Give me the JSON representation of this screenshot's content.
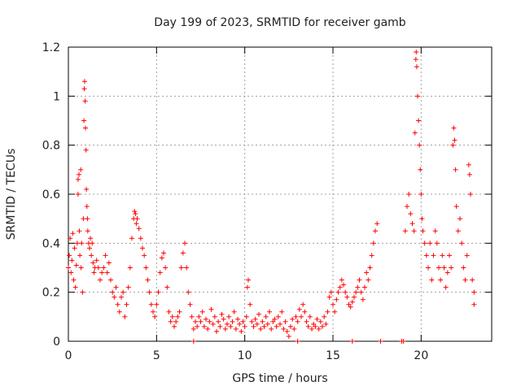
{
  "chart_data": {
    "type": "scatter",
    "title": "Day 199 of 2023, SRMTID for receiver gamb",
    "xlabel": "GPS time / hours",
    "ylabel": "SRMTID / TECUs",
    "xlim": [
      0,
      24
    ],
    "ylim": [
      0,
      1.2
    ],
    "x_ticks": [
      0,
      5,
      10,
      15,
      20
    ],
    "y_ticks": [
      0,
      0.2,
      0.4,
      0.6,
      0.8,
      1,
      1.2
    ],
    "x_tick_labels": [
      "0",
      "5",
      "10",
      "15",
      "20"
    ],
    "y_tick_labels": [
      "0",
      "0.2",
      "0.4",
      "0.6",
      "0.8",
      "1",
      "1.2"
    ],
    "grid": true,
    "marker": "+",
    "marker_color": "#ff0000",
    "series": [
      {
        "name": "SRMTID",
        "points": [
          [
            0.0,
            0.3
          ],
          [
            0.05,
            0.35
          ],
          [
            0.1,
            0.42
          ],
          [
            0.15,
            0.28
          ],
          [
            0.2,
            0.33
          ],
          [
            0.25,
            0.44
          ],
          [
            0.3,
            0.25
          ],
          [
            0.35,
            0.38
          ],
          [
            0.4,
            0.22
          ],
          [
            0.45,
            0.31
          ],
          [
            0.5,
            0.4
          ],
          [
            0.55,
            0.6
          ],
          [
            0.55,
            0.66
          ],
          [
            0.6,
            0.68
          ],
          [
            0.62,
            0.45
          ],
          [
            0.65,
            0.35
          ],
          [
            0.7,
            0.7
          ],
          [
            0.72,
            0.3
          ],
          [
            0.75,
            0.4
          ],
          [
            0.8,
            0.2
          ],
          [
            0.85,
            0.5
          ],
          [
            0.88,
            0.9
          ],
          [
            0.9,
            1.03
          ],
          [
            0.92,
            1.06
          ],
          [
            0.95,
            0.98
          ],
          [
            0.97,
            0.87
          ],
          [
            1.0,
            0.78
          ],
          [
            1.02,
            0.62
          ],
          [
            1.05,
            0.55
          ],
          [
            1.08,
            0.5
          ],
          [
            1.1,
            0.45
          ],
          [
            1.15,
            0.4
          ],
          [
            1.2,
            0.38
          ],
          [
            1.25,
            0.42
          ],
          [
            1.3,
            0.35
          ],
          [
            1.35,
            0.4
          ],
          [
            1.4,
            0.32
          ],
          [
            1.45,
            0.28
          ],
          [
            1.5,
            0.3
          ],
          [
            1.6,
            0.33
          ],
          [
            1.7,
            0.3
          ],
          [
            1.8,
            0.25
          ],
          [
            1.9,
            0.28
          ],
          [
            2.0,
            0.3
          ],
          [
            2.1,
            0.35
          ],
          [
            2.2,
            0.28
          ],
          [
            2.3,
            0.32
          ],
          [
            2.4,
            0.25
          ],
          [
            2.5,
            0.2
          ],
          [
            2.6,
            0.18
          ],
          [
            2.7,
            0.22
          ],
          [
            2.8,
            0.15
          ],
          [
            2.9,
            0.12
          ],
          [
            3.0,
            0.18
          ],
          [
            3.1,
            0.2
          ],
          [
            3.2,
            0.1
          ],
          [
            3.3,
            0.15
          ],
          [
            3.4,
            0.22
          ],
          [
            3.5,
            0.3
          ],
          [
            3.6,
            0.42
          ],
          [
            3.7,
            0.5
          ],
          [
            3.75,
            0.53
          ],
          [
            3.8,
            0.52
          ],
          [
            3.85,
            0.48
          ],
          [
            3.9,
            0.5
          ],
          [
            4.0,
            0.46
          ],
          [
            4.1,
            0.42
          ],
          [
            4.2,
            0.38
          ],
          [
            4.3,
            0.35
          ],
          [
            4.4,
            0.3
          ],
          [
            4.5,
            0.25
          ],
          [
            4.6,
            0.2
          ],
          [
            4.7,
            0.15
          ],
          [
            4.8,
            0.12
          ],
          [
            4.9,
            0.1
          ],
          [
            5.0,
            0.15
          ],
          [
            5.1,
            0.2
          ],
          [
            5.2,
            0.28
          ],
          [
            5.3,
            0.34
          ],
          [
            5.4,
            0.36
          ],
          [
            5.5,
            0.3
          ],
          [
            5.6,
            0.22
          ],
          [
            5.7,
            0.12
          ],
          [
            5.8,
            0.08
          ],
          [
            5.9,
            0.1
          ],
          [
            6.0,
            0.06
          ],
          [
            6.1,
            0.08
          ],
          [
            6.2,
            0.1
          ],
          [
            6.3,
            0.12
          ],
          [
            6.4,
            0.3
          ],
          [
            6.5,
            0.36
          ],
          [
            6.6,
            0.4
          ],
          [
            6.7,
            0.3
          ],
          [
            6.8,
            0.2
          ],
          [
            6.9,
            0.15
          ],
          [
            7.0,
            0.1
          ],
          [
            7.1,
            0.05
          ],
          [
            7.2,
            0.08
          ],
          [
            7.3,
            0.06
          ],
          [
            7.4,
            0.1
          ],
          [
            7.5,
            0.08
          ],
          [
            7.6,
            0.12
          ],
          [
            7.7,
            0.06
          ],
          [
            7.8,
            0.09
          ],
          [
            7.9,
            0.05
          ],
          [
            8.0,
            0.08
          ],
          [
            8.1,
            0.13
          ],
          [
            8.2,
            0.07
          ],
          [
            8.3,
            0.1
          ],
          [
            8.4,
            0.04
          ],
          [
            8.5,
            0.08
          ],
          [
            8.6,
            0.06
          ],
          [
            8.7,
            0.11
          ],
          [
            8.8,
            0.09
          ],
          [
            8.9,
            0.05
          ],
          [
            9.0,
            0.07
          ],
          [
            9.1,
            0.1
          ],
          [
            9.2,
            0.06
          ],
          [
            9.3,
            0.08
          ],
          [
            9.4,
            0.12
          ],
          [
            9.5,
            0.05
          ],
          [
            9.6,
            0.09
          ],
          [
            9.7,
            0.07
          ],
          [
            9.8,
            0.04
          ],
          [
            9.9,
            0.08
          ],
          [
            10.0,
            0.06
          ],
          [
            10.1,
            0.1
          ],
          [
            10.15,
            0.22
          ],
          [
            10.2,
            0.25
          ],
          [
            10.3,
            0.15
          ],
          [
            10.4,
            0.08
          ],
          [
            10.5,
            0.06
          ],
          [
            10.6,
            0.09
          ],
          [
            10.7,
            0.07
          ],
          [
            10.8,
            0.11
          ],
          [
            10.9,
            0.05
          ],
          [
            11.0,
            0.08
          ],
          [
            11.1,
            0.06
          ],
          [
            11.2,
            0.1
          ],
          [
            11.3,
            0.07
          ],
          [
            11.4,
            0.12
          ],
          [
            11.5,
            0.05
          ],
          [
            11.6,
            0.08
          ],
          [
            11.7,
            0.09
          ],
          [
            11.8,
            0.06
          ],
          [
            11.9,
            0.1
          ],
          [
            12.0,
            0.07
          ],
          [
            12.1,
            0.12
          ],
          [
            12.2,
            0.05
          ],
          [
            12.3,
            0.08
          ],
          [
            12.4,
            0.04
          ],
          [
            12.5,
            0.02
          ],
          [
            12.6,
            0.06
          ],
          [
            12.7,
            0.09
          ],
          [
            12.8,
            0.05
          ],
          [
            12.9,
            0.1
          ],
          [
            13.0,
            0.08
          ],
          [
            13.1,
            0.13
          ],
          [
            13.2,
            0.1
          ],
          [
            13.3,
            0.15
          ],
          [
            13.4,
            0.12
          ],
          [
            13.5,
            0.08
          ],
          [
            13.6,
            0.06
          ],
          [
            13.7,
            0.1
          ],
          [
            13.8,
            0.05
          ],
          [
            13.9,
            0.07
          ],
          [
            14.0,
            0.06
          ],
          [
            14.1,
            0.09
          ],
          [
            14.2,
            0.05
          ],
          [
            14.3,
            0.08
          ],
          [
            14.4,
            0.06
          ],
          [
            14.5,
            0.1
          ],
          [
            14.6,
            0.07
          ],
          [
            14.7,
            0.12
          ],
          [
            14.8,
            0.18
          ],
          [
            14.9,
            0.2
          ],
          [
            15.0,
            0.15
          ],
          [
            15.1,
            0.12
          ],
          [
            15.2,
            0.17
          ],
          [
            15.3,
            0.2
          ],
          [
            15.4,
            0.22
          ],
          [
            15.5,
            0.25
          ],
          [
            15.6,
            0.23
          ],
          [
            15.7,
            0.2
          ],
          [
            15.8,
            0.18
          ],
          [
            15.9,
            0.15
          ],
          [
            16.0,
            0.14
          ],
          [
            16.1,
            0.16
          ],
          [
            16.2,
            0.18
          ],
          [
            16.3,
            0.2
          ],
          [
            16.4,
            0.22
          ],
          [
            16.5,
            0.25
          ],
          [
            16.6,
            0.2
          ],
          [
            16.7,
            0.17
          ],
          [
            16.8,
            0.22
          ],
          [
            16.9,
            0.28
          ],
          [
            17.0,
            0.25
          ],
          [
            17.1,
            0.3
          ],
          [
            17.2,
            0.35
          ],
          [
            17.3,
            0.4
          ],
          [
            17.4,
            0.45
          ],
          [
            17.5,
            0.48
          ],
          [
            19.1,
            0.45
          ],
          [
            19.2,
            0.55
          ],
          [
            19.3,
            0.6
          ],
          [
            19.4,
            0.52
          ],
          [
            19.5,
            0.48
          ],
          [
            19.6,
            0.45
          ],
          [
            19.65,
            0.85
          ],
          [
            19.7,
            1.15
          ],
          [
            19.72,
            1.18
          ],
          [
            19.75,
            1.12
          ],
          [
            19.8,
            1.0
          ],
          [
            19.85,
            0.9
          ],
          [
            19.9,
            0.8
          ],
          [
            19.95,
            0.7
          ],
          [
            20.0,
            0.6
          ],
          [
            20.05,
            0.5
          ],
          [
            20.1,
            0.45
          ],
          [
            20.2,
            0.4
          ],
          [
            20.3,
            0.35
          ],
          [
            20.4,
            0.3
          ],
          [
            20.5,
            0.4
          ],
          [
            20.6,
            0.25
          ],
          [
            20.7,
            0.35
          ],
          [
            20.8,
            0.45
          ],
          [
            20.9,
            0.4
          ],
          [
            21.0,
            0.3
          ],
          [
            21.1,
            0.25
          ],
          [
            21.2,
            0.35
          ],
          [
            21.3,
            0.3
          ],
          [
            21.4,
            0.22
          ],
          [
            21.5,
            0.28
          ],
          [
            21.6,
            0.35
          ],
          [
            21.7,
            0.3
          ],
          [
            21.8,
            0.8
          ],
          [
            21.85,
            0.87
          ],
          [
            21.9,
            0.82
          ],
          [
            21.95,
            0.7
          ],
          [
            22.0,
            0.55
          ],
          [
            22.1,
            0.45
          ],
          [
            22.2,
            0.5
          ],
          [
            22.3,
            0.4
          ],
          [
            22.4,
            0.3
          ],
          [
            22.5,
            0.25
          ],
          [
            22.6,
            0.35
          ],
          [
            22.7,
            0.72
          ],
          [
            22.75,
            0.68
          ],
          [
            22.8,
            0.6
          ],
          [
            22.9,
            0.25
          ],
          [
            23.0,
            0.2
          ],
          [
            23.0,
            0.15
          ],
          [
            7.1,
            0.0
          ],
          [
            16.1,
            0.0
          ],
          [
            17.7,
            0.0
          ],
          [
            18.9,
            0.0
          ],
          [
            19.0,
            0.0
          ],
          [
            13.0,
            0.0
          ]
        ]
      }
    ]
  }
}
